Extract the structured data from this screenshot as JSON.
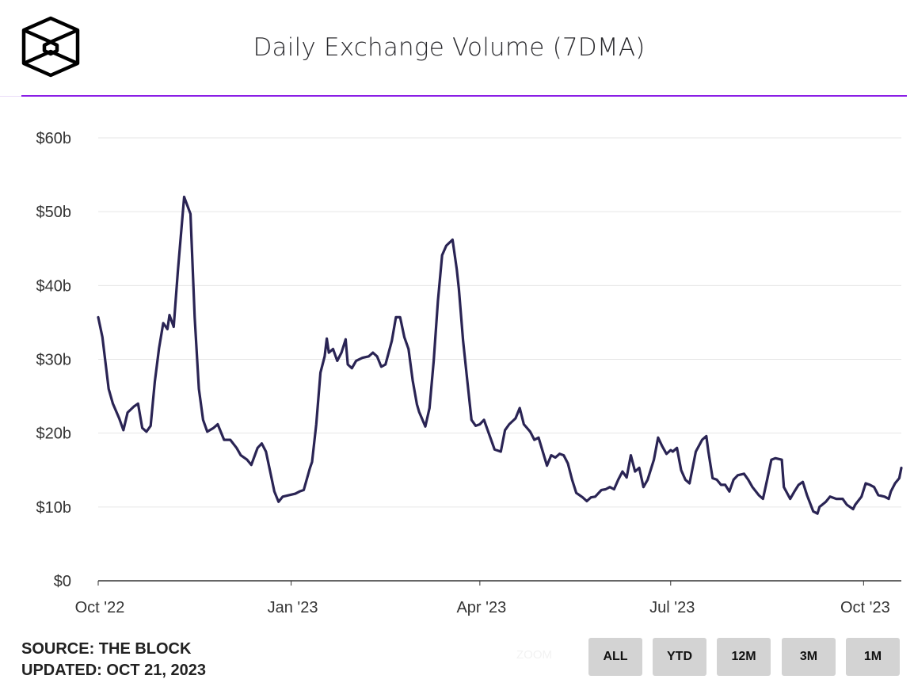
{
  "header": {
    "title": "Daily Exchange Volume (7DMA)",
    "logo_text": "The Block"
  },
  "footer": {
    "source": "SOURCE: THE BLOCK",
    "updated": "UPDATED: OCT 21, 2023"
  },
  "range_selector": {
    "label": "ZOOM",
    "buttons": [
      "ALL",
      "YTD",
      "12M",
      "3M",
      "1M"
    ]
  },
  "colors": {
    "line": "#2a2454",
    "accent": "#8a1ee6",
    "grid": "#e6e6e6"
  },
  "chart_data": {
    "type": "line",
    "title": "Daily Exchange Volume (7DMA)",
    "x_unit": "days since 2022-10-01",
    "xlim": [
      0,
      383
    ],
    "ylim": [
      0,
      60
    ],
    "y_unit": "USD billions",
    "grid": true,
    "yticks": [
      {
        "v": 0,
        "label": "$0"
      },
      {
        "v": 10,
        "label": "$10b"
      },
      {
        "v": 20,
        "label": "$20b"
      },
      {
        "v": 30,
        "label": "$30b"
      },
      {
        "v": 40,
        "label": "$40b"
      },
      {
        "v": 50,
        "label": "$50b"
      },
      {
        "v": 60,
        "label": "$60b"
      }
    ],
    "xticks": [
      {
        "v": 0,
        "label": "Oct '22"
      },
      {
        "v": 92,
        "label": "Jan '23"
      },
      {
        "v": 182,
        "label": "Apr '23"
      },
      {
        "v": 273,
        "label": "Jul '23"
      },
      {
        "v": 365,
        "label": "Oct '23"
      }
    ],
    "series": [
      {
        "name": "Daily Exchange Volume (7DMA)",
        "points": [
          [
            0,
            35.7
          ],
          [
            2,
            33
          ],
          [
            5,
            26
          ],
          [
            7,
            24
          ],
          [
            10,
            22
          ],
          [
            12,
            20.4
          ],
          [
            14,
            22.8
          ],
          [
            17,
            23.6
          ],
          [
            19,
            24
          ],
          [
            21,
            20.7
          ],
          [
            23,
            20.2
          ],
          [
            25,
            21
          ],
          [
            27,
            27
          ],
          [
            29,
            31.5
          ],
          [
            31,
            34.9
          ],
          [
            33,
            34.1
          ],
          [
            34,
            36
          ],
          [
            36,
            34.4
          ],
          [
            38,
            42
          ],
          [
            41,
            52
          ],
          [
            44,
            49.7
          ],
          [
            46,
            35.7
          ],
          [
            48,
            26
          ],
          [
            50,
            21.8
          ],
          [
            52,
            20.2
          ],
          [
            55,
            20.7
          ],
          [
            57,
            21.2
          ],
          [
            60,
            19.1
          ],
          [
            63,
            19.1
          ],
          [
            66,
            18
          ],
          [
            68,
            17
          ],
          [
            71,
            16.4
          ],
          [
            73,
            15.7
          ],
          [
            76,
            18
          ],
          [
            78,
            18.6
          ],
          [
            80,
            17.5
          ],
          [
            82,
            14.8
          ],
          [
            84,
            12.1
          ],
          [
            86,
            10.7
          ],
          [
            88,
            11.4
          ],
          [
            91,
            11.6
          ],
          [
            94,
            11.8
          ],
          [
            96,
            12.1
          ],
          [
            98,
            12.3
          ],
          [
            101,
            15.3
          ],
          [
            102,
            16.1
          ],
          [
            104,
            21.2
          ],
          [
            106,
            28.2
          ],
          [
            108,
            30.4
          ],
          [
            109,
            32.8
          ],
          [
            110,
            30.9
          ],
          [
            112,
            31.4
          ],
          [
            114,
            29.8
          ],
          [
            116,
            30.9
          ],
          [
            118,
            32.7
          ],
          [
            119,
            29.3
          ],
          [
            121,
            28.8
          ],
          [
            123,
            29.8
          ],
          [
            126,
            30.2
          ],
          [
            129,
            30.4
          ],
          [
            131,
            30.9
          ],
          [
            133,
            30.4
          ],
          [
            135,
            29
          ],
          [
            137,
            29.3
          ],
          [
            140,
            32.5
          ],
          [
            142,
            35.7
          ],
          [
            144,
            35.7
          ],
          [
            146,
            33
          ],
          [
            148,
            31.4
          ],
          [
            150,
            27.1
          ],
          [
            152,
            23.9
          ],
          [
            153,
            22.9
          ],
          [
            156,
            20.9
          ],
          [
            158,
            23.4
          ],
          [
            160,
            29.8
          ],
          [
            162,
            37.9
          ],
          [
            164,
            44.1
          ],
          [
            166,
            45.4
          ],
          [
            169,
            46.2
          ],
          [
            171,
            42.2
          ],
          [
            172,
            39.5
          ],
          [
            174,
            32.5
          ],
          [
            176,
            27.1
          ],
          [
            178,
            21.8
          ],
          [
            180,
            21
          ],
          [
            182,
            21.2
          ],
          [
            184,
            21.8
          ],
          [
            187,
            19.4
          ],
          [
            189,
            17.8
          ],
          [
            192,
            17.5
          ],
          [
            194,
            20.4
          ],
          [
            196,
            21.2
          ],
          [
            199,
            22
          ],
          [
            201,
            23.4
          ],
          [
            203,
            21.2
          ],
          [
            206,
            20.2
          ],
          [
            208,
            19.1
          ],
          [
            210,
            19.4
          ],
          [
            212,
            17.5
          ],
          [
            214,
            15.6
          ],
          [
            216,
            17
          ],
          [
            218,
            16.7
          ],
          [
            220,
            17.2
          ],
          [
            222,
            17
          ],
          [
            224,
            15.9
          ],
          [
            226,
            13.7
          ],
          [
            228,
            11.9
          ],
          [
            231,
            11.3
          ],
          [
            233,
            10.8
          ],
          [
            235,
            11.3
          ],
          [
            237,
            11.4
          ],
          [
            240,
            12.3
          ],
          [
            242,
            12.4
          ],
          [
            244,
            12.7
          ],
          [
            246,
            12.4
          ],
          [
            248,
            13.7
          ],
          [
            250,
            14.8
          ],
          [
            252,
            14
          ],
          [
            254,
            17
          ],
          [
            256,
            14.8
          ],
          [
            258,
            15.3
          ],
          [
            260,
            12.7
          ],
          [
            262,
            13.7
          ],
          [
            265,
            16.4
          ],
          [
            267,
            19.4
          ],
          [
            269,
            18.2
          ],
          [
            271,
            17.2
          ],
          [
            273,
            17.7
          ],
          [
            274,
            17.5
          ],
          [
            276,
            18
          ],
          [
            278,
            15
          ],
          [
            280,
            13.7
          ],
          [
            282,
            13.2
          ],
          [
            285,
            17.5
          ],
          [
            288,
            19.1
          ],
          [
            290,
            19.6
          ],
          [
            291,
            17.5
          ],
          [
            293,
            13.9
          ],
          [
            295,
            13.7
          ],
          [
            297,
            13
          ],
          [
            299,
            13
          ],
          [
            301,
            12.1
          ],
          [
            303,
            13.7
          ],
          [
            305,
            14.3
          ],
          [
            308,
            14.5
          ],
          [
            310,
            13.7
          ],
          [
            312,
            12.7
          ],
          [
            315,
            11.6
          ],
          [
            317,
            11.1
          ],
          [
            319,
            13.7
          ],
          [
            321,
            16.4
          ],
          [
            323,
            16.6
          ],
          [
            326,
            16.4
          ],
          [
            327,
            12.7
          ],
          [
            330,
            11.1
          ],
          [
            332,
            12.1
          ],
          [
            334,
            13
          ],
          [
            336,
            13.4
          ],
          [
            338,
            11.6
          ],
          [
            341,
            9.4
          ],
          [
            343,
            9.1
          ],
          [
            344,
            10
          ],
          [
            347,
            10.7
          ],
          [
            349,
            11.4
          ],
          [
            352,
            11.1
          ],
          [
            355,
            11.1
          ],
          [
            357,
            10.3
          ],
          [
            360,
            9.7
          ],
          [
            361,
            10.3
          ],
          [
            364,
            11.4
          ],
          [
            366,
            13.2
          ],
          [
            368,
            13
          ],
          [
            370,
            12.7
          ],
          [
            372,
            11.6
          ],
          [
            375,
            11.4
          ],
          [
            377,
            11.1
          ],
          [
            378,
            12.1
          ],
          [
            380,
            13.2
          ],
          [
            382,
            13.9
          ],
          [
            383,
            15.3
          ]
        ]
      }
    ]
  }
}
